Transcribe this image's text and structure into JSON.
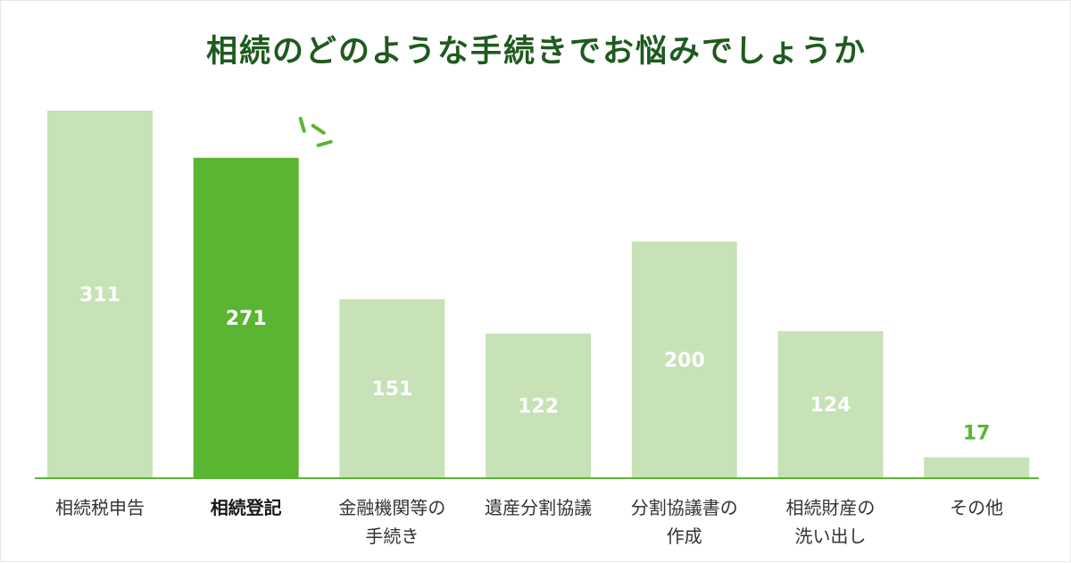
{
  "title": "相続のどのような手続きでお悩みでしょうか",
  "colors": {
    "bar": "#c6e2b6",
    "bar_highlight": "#5ab532",
    "label_inside": "#ffffff",
    "label_outside": "#5ab532",
    "axis": "#5ab532",
    "title": "#1f5a1f"
  },
  "chart_data": {
    "type": "bar",
    "title": "相続のどのような手続きでお悩みでしょうか",
    "categories": [
      "相続税申告",
      "相続登記",
      "金融機関等の\n手続き",
      "遺産分割協議",
      "分割協議書の\n作成",
      "相続財産の\n洗い出し",
      "その他"
    ],
    "values": [
      311,
      271,
      151,
      122,
      200,
      124,
      17
    ],
    "value_labels": [
      "311",
      "271",
      "151",
      "122",
      "200",
      "124",
      "17"
    ],
    "highlight_index": 1,
    "xlabel": "",
    "ylabel": "",
    "ylim": [
      0,
      311
    ],
    "grid": false,
    "legend": "none"
  }
}
